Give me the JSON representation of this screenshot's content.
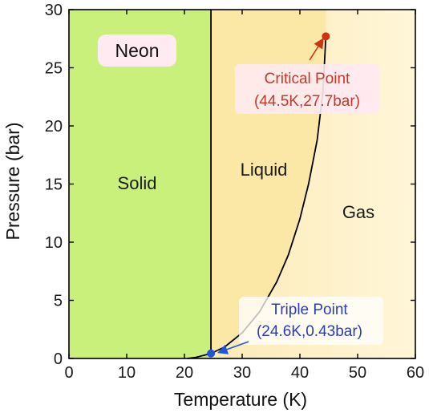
{
  "chart_data": {
    "type": "line",
    "title": "Neon",
    "xlabel": "Temperature (K)",
    "ylabel": "Pressure (bar)",
    "xlim": [
      0,
      60
    ],
    "ylim": [
      0,
      30
    ],
    "xticks": [
      0,
      10,
      20,
      30,
      40,
      50,
      60
    ],
    "yticks": [
      0,
      5,
      10,
      15,
      20,
      25,
      30
    ],
    "grid": false,
    "regions": [
      {
        "label": "Solid",
        "color": "#c8f07a"
      },
      {
        "label": "Liquid",
        "color": "#fbe7a6"
      },
      {
        "label": "Gas",
        "color": "#fff6d8"
      }
    ],
    "series": [
      {
        "color": "#000000",
        "x": [
          24.6,
          24.6
        ],
        "y": [
          0.43,
          30
        ]
      },
      {
        "color": "#000000",
        "x": [
          20.5,
          22.0,
          24.6,
          27.0,
          30.0,
          33.0,
          36.0,
          38.0,
          40.0,
          41.5,
          43.0,
          44.0,
          44.5
        ],
        "y": [
          0.0,
          0.1,
          0.43,
          1.0,
          2.2,
          4.0,
          6.6,
          8.9,
          12.0,
          15.0,
          18.8,
          23.0,
          27.7
        ]
      }
    ],
    "points": [
      {
        "name": "Critical Point",
        "x": 44.5,
        "y": 27.7,
        "color": "#cc3311"
      },
      {
        "name": "Triple Point",
        "x": 24.6,
        "y": 0.43,
        "color": "#2255dd"
      }
    ],
    "annotations": [
      {
        "line1": "Critical Point",
        "line2": "(44.5K,27.7bar)",
        "color": "#c0392b"
      },
      {
        "line1": "Triple Point",
        "line2": "(24.6K,0.43bar)",
        "color": "#2a3db0"
      }
    ]
  }
}
